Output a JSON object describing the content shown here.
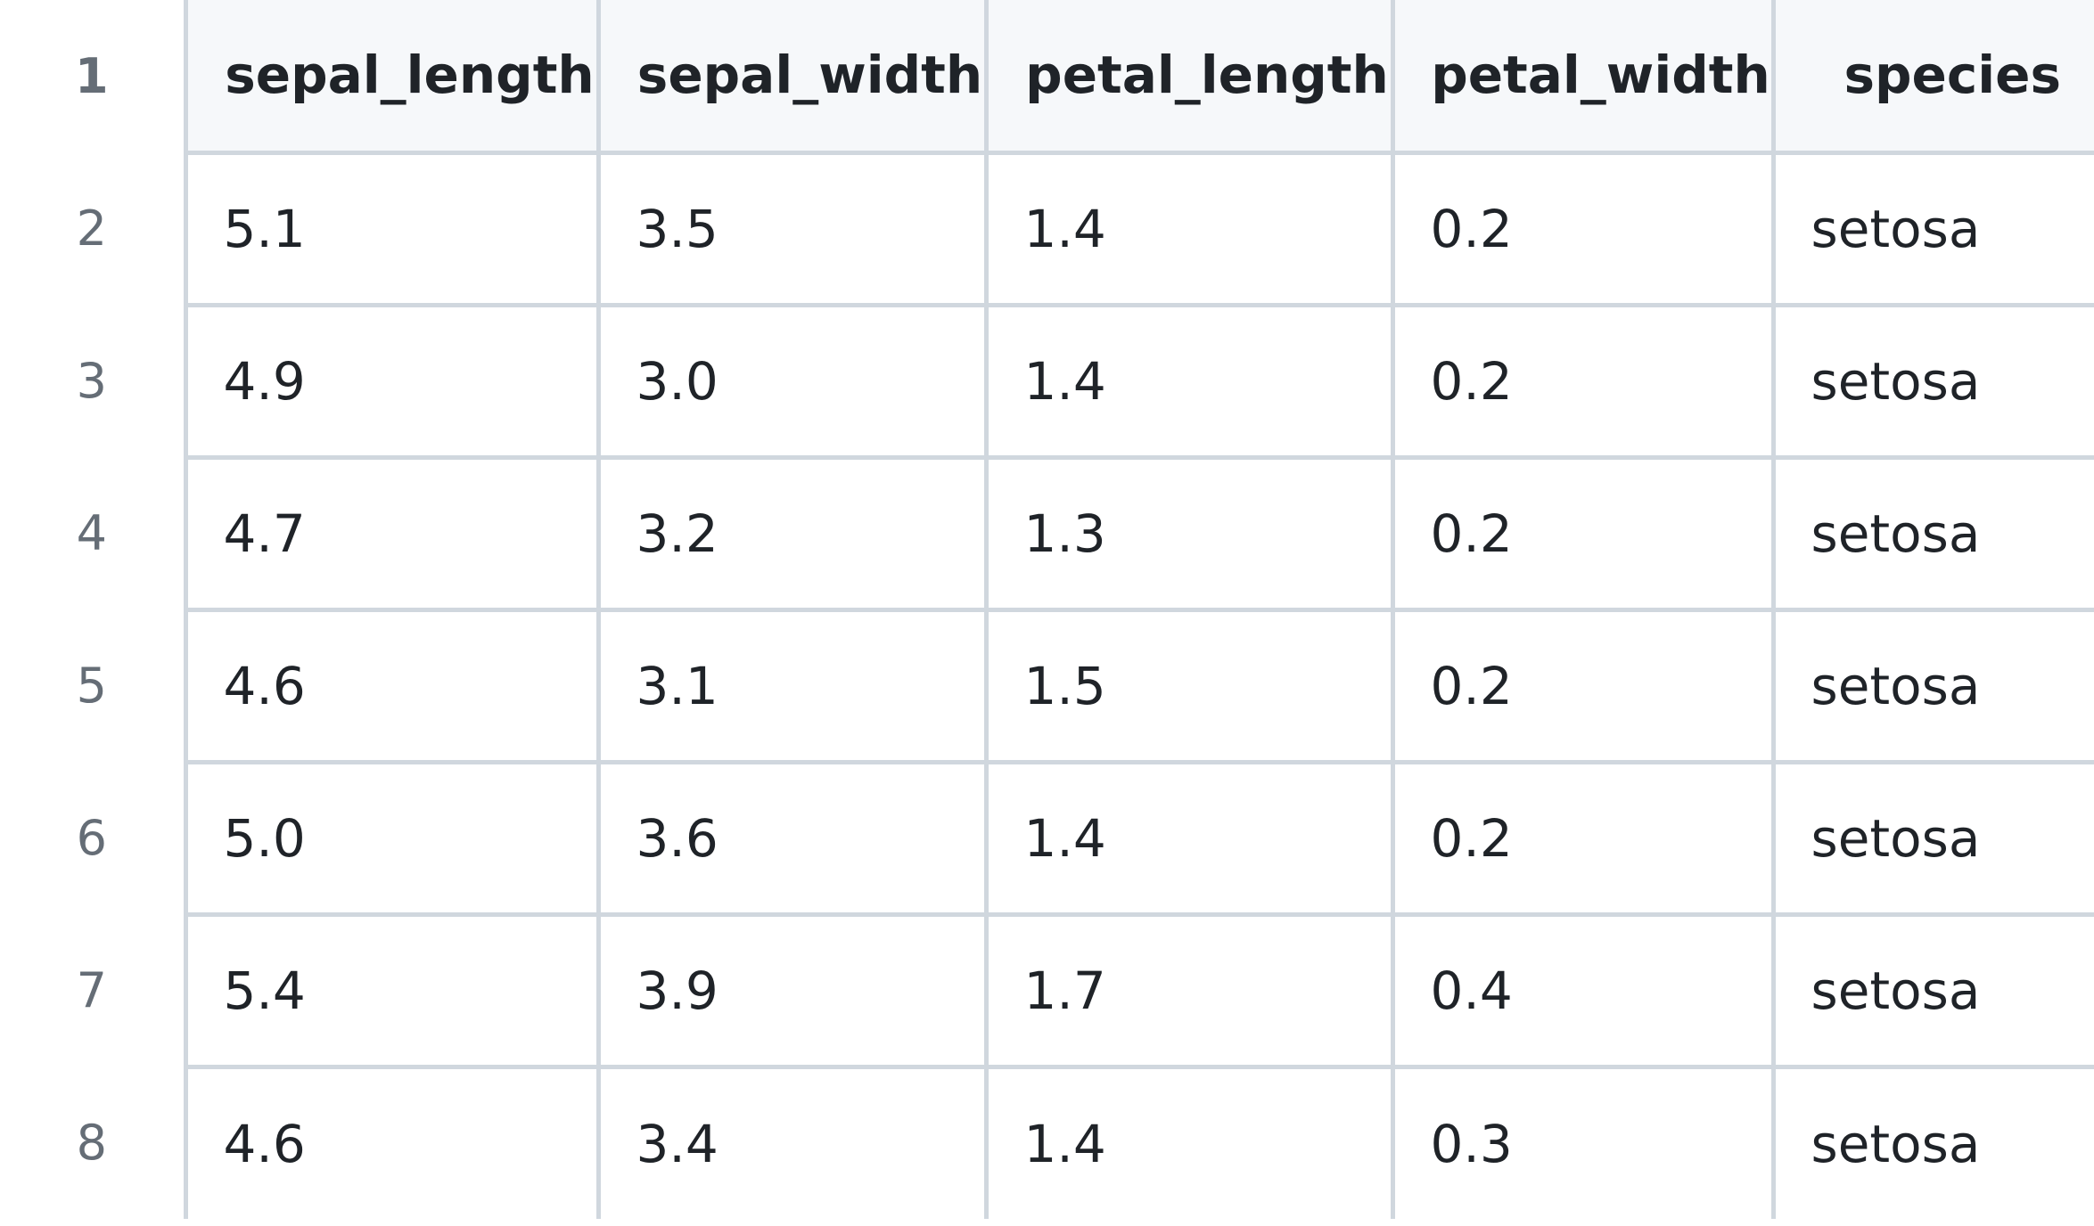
{
  "table": {
    "header_line_number": "1",
    "columns": [
      "sepal_length",
      "sepal_width",
      "petal_length",
      "petal_width",
      "species"
    ],
    "rows": [
      {
        "line": "2",
        "cells": [
          "5.1",
          "3.5",
          "1.4",
          "0.2",
          "setosa"
        ]
      },
      {
        "line": "3",
        "cells": [
          "4.9",
          "3.0",
          "1.4",
          "0.2",
          "setosa"
        ]
      },
      {
        "line": "4",
        "cells": [
          "4.7",
          "3.2",
          "1.3",
          "0.2",
          "setosa"
        ]
      },
      {
        "line": "5",
        "cells": [
          "4.6",
          "3.1",
          "1.5",
          "0.2",
          "setosa"
        ]
      },
      {
        "line": "6",
        "cells": [
          "5.0",
          "3.6",
          "1.4",
          "0.2",
          "setosa"
        ]
      },
      {
        "line": "7",
        "cells": [
          "5.4",
          "3.9",
          "1.7",
          "0.4",
          "setosa"
        ]
      },
      {
        "line": "8",
        "cells": [
          "4.6",
          "3.4",
          "1.4",
          "0.3",
          "setosa"
        ]
      }
    ]
  }
}
